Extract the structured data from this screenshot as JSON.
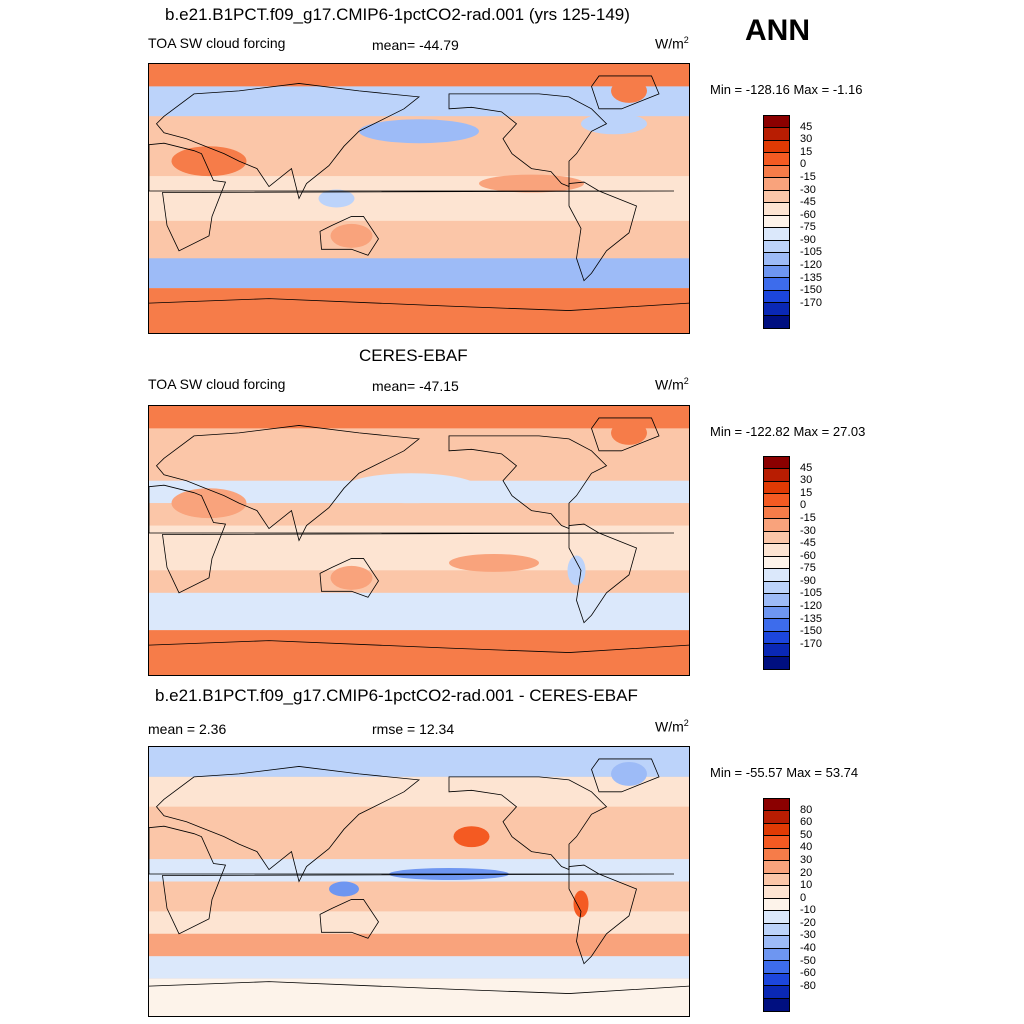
{
  "season": "ANN",
  "units_base": "W/m",
  "units_exp": "2",
  "panels": [
    {
      "title": "b.e21.B1PCT.f09_g17.CMIP6-1pctCO2-rad.001 (yrs 125-149)",
      "left_label": "TOA SW cloud forcing",
      "center_label": "mean= -44.79",
      "minmax": "Min = -128.16 Max =  -1.16",
      "colorbar": "abs"
    },
    {
      "title": "CERES-EBAF",
      "left_label": "TOA SW cloud forcing",
      "center_label": "mean= -47.15",
      "minmax": "Min = -122.82 Max =  27.03",
      "colorbar": "abs"
    },
    {
      "title": "b.e21.B1PCT.f09_g17.CMIP6-1pctCO2-rad.001 - CERES-EBAF",
      "left_label": "mean =   2.36",
      "center_label": "rmse =  12.34",
      "minmax": "Min = -55.57 Max =  53.74",
      "colorbar": "diff"
    }
  ],
  "colorbars": {
    "abs": {
      "levels": [
        "45",
        "30",
        "15",
        "0",
        "-15",
        "-30",
        "-45",
        "-60",
        "-75",
        "-90",
        "-105",
        "-120",
        "-135",
        "-150",
        "-170"
      ],
      "colors": [
        "#8b0000",
        "#b81d02",
        "#e03a04",
        "#f45a22",
        "#f67c49",
        "#f9a37c",
        "#fbc6a8",
        "#fde4d2",
        "#fdf3ea",
        "#dbe8fb",
        "#bcd3fa",
        "#9dbbf7",
        "#6e96f1",
        "#3d6cec",
        "#1c46dd",
        "#0a28b5",
        "#000f80"
      ]
    },
    "diff": {
      "levels": [
        "80",
        "60",
        "50",
        "40",
        "30",
        "20",
        "10",
        "0",
        "-10",
        "-20",
        "-30",
        "-40",
        "-50",
        "-60",
        "-80"
      ],
      "colors": [
        "#8b0000",
        "#b81d02",
        "#e03a04",
        "#f45a22",
        "#f67c49",
        "#f9a37c",
        "#fbc6a8",
        "#fde4d2",
        "#fdf3ea",
        "#dbe8fb",
        "#bcd3fa",
        "#9dbbf7",
        "#6e96f1",
        "#3d6cec",
        "#1c46dd",
        "#0a28b5",
        "#000f80"
      ]
    }
  },
  "map_fields": [
    {
      "background": "#fbc6a8",
      "bands": [
        {
          "color": "#f67c49",
          "lat_from": 90,
          "lat_to": 75
        },
        {
          "color": "#bcd3fa",
          "lat_from": 75,
          "lat_to": 55
        },
        {
          "color": "#fbc6a8",
          "lat_from": 55,
          "lat_to": 15
        },
        {
          "color": "#fde4d2",
          "lat_from": 15,
          "lat_to": -15
        },
        {
          "color": "#fbc6a8",
          "lat_from": -15,
          "lat_to": -40
        },
        {
          "color": "#9dbbf7",
          "lat_from": -40,
          "lat_to": -60
        },
        {
          "color": "#f67c49",
          "lat_from": -60,
          "lat_to": -90
        }
      ],
      "blobs": [
        {
          "color": "#9dbbf7",
          "lon": 180,
          "lat": 45,
          "rx": 40,
          "ry": 8
        },
        {
          "color": "#bcd3fa",
          "lon": 310,
          "lat": 50,
          "rx": 22,
          "ry": 7
        },
        {
          "color": "#f67c49",
          "lon": 40,
          "lat": 25,
          "rx": 25,
          "ry": 10
        },
        {
          "color": "#f67c49",
          "lon": 320,
          "lat": 72,
          "rx": 12,
          "ry": 8
        },
        {
          "color": "#bcd3fa",
          "lon": 125,
          "lat": 0,
          "rx": 12,
          "ry": 6
        },
        {
          "color": "#f9a37c",
          "lon": 135,
          "lat": -25,
          "rx": 14,
          "ry": 8
        },
        {
          "color": "#f9a37c",
          "lon": 255,
          "lat": 10,
          "rx": 35,
          "ry": 6
        }
      ]
    },
    {
      "background": "#fbc6a8",
      "bands": [
        {
          "color": "#f67c49",
          "lat_from": 90,
          "lat_to": 75
        },
        {
          "color": "#fbc6a8",
          "lat_from": 75,
          "lat_to": 40
        },
        {
          "color": "#dbe8fb",
          "lat_from": 40,
          "lat_to": 25
        },
        {
          "color": "#fbc6a8",
          "lat_from": 25,
          "lat_to": 10
        },
        {
          "color": "#fde4d2",
          "lat_from": 10,
          "lat_to": -20
        },
        {
          "color": "#fbc6a8",
          "lat_from": -20,
          "lat_to": -35
        },
        {
          "color": "#dbe8fb",
          "lat_from": -35,
          "lat_to": -60
        },
        {
          "color": "#f67c49",
          "lat_from": -60,
          "lat_to": -90
        }
      ],
      "blobs": [
        {
          "color": "#dbe8fb",
          "lon": 175,
          "lat": 35,
          "rx": 45,
          "ry": 10
        },
        {
          "color": "#f9a37c",
          "lon": 40,
          "lat": 25,
          "rx": 25,
          "ry": 10
        },
        {
          "color": "#f67c49",
          "lon": 320,
          "lat": 72,
          "rx": 12,
          "ry": 8
        },
        {
          "color": "#f9a37c",
          "lon": 230,
          "lat": -15,
          "rx": 30,
          "ry": 6
        },
        {
          "color": "#f9a37c",
          "lon": 135,
          "lat": -25,
          "rx": 14,
          "ry": 8
        },
        {
          "color": "#bcd3fa",
          "lon": 285,
          "lat": -20,
          "rx": 6,
          "ry": 10
        }
      ]
    },
    {
      "background": "#fbc6a8",
      "bands": [
        {
          "color": "#bcd3fa",
          "lat_from": 90,
          "lat_to": 70
        },
        {
          "color": "#fde4d2",
          "lat_from": 70,
          "lat_to": 50
        },
        {
          "color": "#fbc6a8",
          "lat_from": 50,
          "lat_to": 15
        },
        {
          "color": "#dbe8fb",
          "lat_from": 15,
          "lat_to": 0
        },
        {
          "color": "#fbc6a8",
          "lat_from": 0,
          "lat_to": -20
        },
        {
          "color": "#fde4d2",
          "lat_from": -20,
          "lat_to": -35
        },
        {
          "color": "#f9a37c",
          "lat_from": -35,
          "lat_to": -50
        },
        {
          "color": "#dbe8fb",
          "lat_from": -50,
          "lat_to": -65
        },
        {
          "color": "#fdf3ea",
          "lat_from": -65,
          "lat_to": -90
        }
      ],
      "blobs": [
        {
          "color": "#f45a22",
          "lon": 215,
          "lat": 30,
          "rx": 12,
          "ry": 7
        },
        {
          "color": "#6e96f1",
          "lon": 200,
          "lat": 5,
          "rx": 40,
          "ry": 4
        },
        {
          "color": "#f45a22",
          "lon": 288,
          "lat": -15,
          "rx": 5,
          "ry": 9
        },
        {
          "color": "#6e96f1",
          "lon": 130,
          "lat": -5,
          "rx": 10,
          "ry": 5
        },
        {
          "color": "#9dbbf7",
          "lon": 320,
          "lat": 72,
          "rx": 12,
          "ry": 8
        }
      ]
    }
  ]
}
